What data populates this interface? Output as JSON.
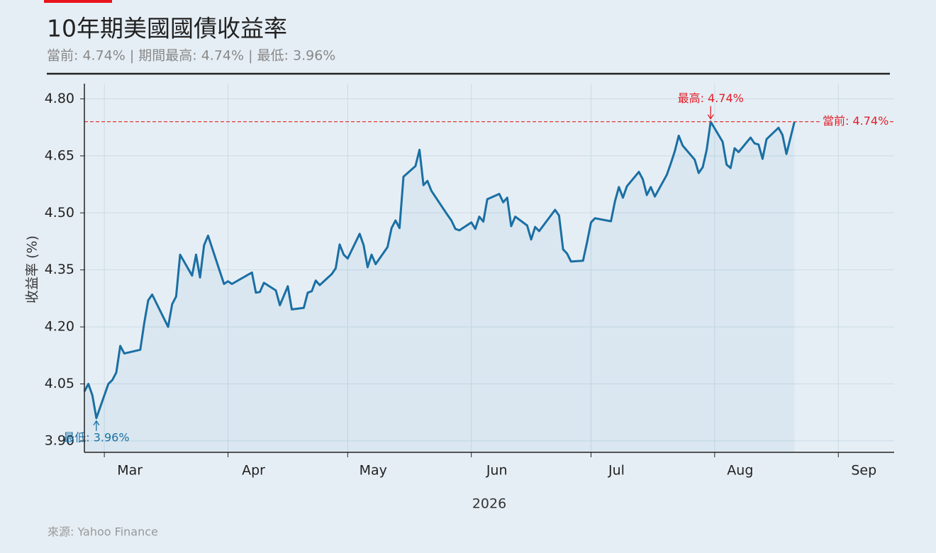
{
  "chart_data": {
    "type": "line",
    "title": "10年期美國國債收益率",
    "subtitle": "當前: 4.74% | 期間最高: 4.74% | 最低: 3.96%",
    "ylabel": "收益率 (%)",
    "xlabel": "2026",
    "source": "來源: Yahoo Finance",
    "grid": true,
    "xlim": [
      "2026-02-24",
      "2026-09-15"
    ],
    "ylim": [
      3.87,
      4.84
    ],
    "yticks": [
      {
        "value": 3.9,
        "label": "3.90"
      },
      {
        "value": 4.05,
        "label": "4.05"
      },
      {
        "value": 4.2,
        "label": "4.20"
      },
      {
        "value": 4.35,
        "label": "4.35"
      },
      {
        "value": 4.5,
        "label": "4.50"
      },
      {
        "value": 4.65,
        "label": "4.65"
      },
      {
        "value": 4.8,
        "label": "4.80"
      }
    ],
    "xticks": [
      {
        "value": "2026-03-01",
        "label": "Mar"
      },
      {
        "value": "2026-04-01",
        "label": "Apr"
      },
      {
        "value": "2026-05-01",
        "label": "May"
      },
      {
        "value": "2026-06-01",
        "label": "Jun"
      },
      {
        "value": "2026-07-01",
        "label": "Jul"
      },
      {
        "value": "2026-08-01",
        "label": "Aug"
      },
      {
        "value": "2026-09-01",
        "label": "Sep"
      }
    ],
    "x": [
      "2026-02-24",
      "2026-02-25",
      "2026-02-26",
      "2026-02-27",
      "2026-03-02",
      "2026-03-03",
      "2026-03-04",
      "2026-03-05",
      "2026-03-06",
      "2026-03-10",
      "2026-03-11",
      "2026-03-12",
      "2026-03-13",
      "2026-03-17",
      "2026-03-18",
      "2026-03-19",
      "2026-03-20",
      "2026-03-23",
      "2026-03-24",
      "2026-03-25",
      "2026-03-26",
      "2026-03-27",
      "2026-03-31",
      "2026-04-01",
      "2026-04-02",
      "2026-04-06",
      "2026-04-07",
      "2026-04-08",
      "2026-04-09",
      "2026-04-10",
      "2026-04-13",
      "2026-04-14",
      "2026-04-16",
      "2026-04-17",
      "2026-04-20",
      "2026-04-21",
      "2026-04-22",
      "2026-04-23",
      "2026-04-24",
      "2026-04-27",
      "2026-04-28",
      "2026-04-29",
      "2026-04-30",
      "2026-05-01",
      "2026-05-04",
      "2026-05-05",
      "2026-05-06",
      "2026-05-07",
      "2026-05-08",
      "2026-05-11",
      "2026-05-12",
      "2026-05-13",
      "2026-05-14",
      "2026-05-15",
      "2026-05-18",
      "2026-05-19",
      "2026-05-20",
      "2026-05-21",
      "2026-05-22",
      "2026-05-26",
      "2026-05-27",
      "2026-05-28",
      "2026-05-29",
      "2026-06-01",
      "2026-06-02",
      "2026-06-03",
      "2026-06-04",
      "2026-06-05",
      "2026-06-08",
      "2026-06-09",
      "2026-06-10",
      "2026-06-11",
      "2026-06-12",
      "2026-06-15",
      "2026-06-16",
      "2026-06-17",
      "2026-06-18",
      "2026-06-22",
      "2026-06-23",
      "2026-06-24",
      "2026-06-25",
      "2026-06-26",
      "2026-06-29",
      "2026-06-30",
      "2026-07-01",
      "2026-07-02",
      "2026-07-06",
      "2026-07-07",
      "2026-07-08",
      "2026-07-09",
      "2026-07-10",
      "2026-07-13",
      "2026-07-14",
      "2026-07-15",
      "2026-07-16",
      "2026-07-17",
      "2026-07-20",
      "2026-07-21",
      "2026-07-22",
      "2026-07-23",
      "2026-07-24",
      "2026-07-27",
      "2026-07-28",
      "2026-07-29",
      "2026-07-30",
      "2026-07-31",
      "2026-08-03",
      "2026-08-04",
      "2026-08-05",
      "2026-08-06",
      "2026-08-07",
      "2026-08-10",
      "2026-08-11",
      "2026-08-12",
      "2026-08-13",
      "2026-08-14",
      "2026-08-17",
      "2026-08-18",
      "2026-08-19",
      "2026-08-21"
    ],
    "series": [
      {
        "name": "10年期美國國債收益率",
        "color": "#1a6fa3",
        "values": [
          4.03,
          4.05,
          4.02,
          3.96,
          4.05,
          4.06,
          4.08,
          4.15,
          4.13,
          4.14,
          4.21,
          4.27,
          4.285,
          4.2,
          4.26,
          4.28,
          4.39,
          4.335,
          4.39,
          4.33,
          4.415,
          4.44,
          4.313,
          4.32,
          4.313,
          4.337,
          4.343,
          4.29,
          4.292,
          4.316,
          4.296,
          4.257,
          4.307,
          4.246,
          4.25,
          4.29,
          4.294,
          4.322,
          4.31,
          4.339,
          4.354,
          4.417,
          4.39,
          4.38,
          4.445,
          4.415,
          4.357,
          4.39,
          4.365,
          4.41,
          4.46,
          4.48,
          4.46,
          4.595,
          4.623,
          4.666,
          4.573,
          4.584,
          4.558,
          4.495,
          4.48,
          4.458,
          4.454,
          4.475,
          4.458,
          4.49,
          4.477,
          4.536,
          4.55,
          4.528,
          4.54,
          4.465,
          4.49,
          4.467,
          4.43,
          4.463,
          4.452,
          4.508,
          4.493,
          4.404,
          4.393,
          4.372,
          4.374,
          4.422,
          4.475,
          4.486,
          4.478,
          4.53,
          4.568,
          4.54,
          4.57,
          4.608,
          4.588,
          4.547,
          4.568,
          4.543,
          4.6,
          4.63,
          4.662,
          4.703,
          4.677,
          4.64,
          4.605,
          4.62,
          4.666,
          4.74,
          4.687,
          4.627,
          4.618,
          4.67,
          4.66,
          4.698,
          4.683,
          4.68,
          4.642,
          4.694,
          4.724,
          4.705,
          4.655,
          4.74
        ]
      }
    ],
    "hline": {
      "value": 4.74,
      "color": "#e03a3a"
    },
    "annotations": [
      {
        "text": "最高: 4.74%",
        "x": "2026-07-31",
        "y": 4.74,
        "color": "#e0202a"
      },
      {
        "text": "最低: 3.96%",
        "x": "2026-02-27",
        "y": 3.96,
        "color": "#1a6fa3"
      },
      {
        "text": "當前: 4.74%",
        "x": "2026-08-21",
        "y": 4.74,
        "color": "#e0202a"
      }
    ]
  }
}
